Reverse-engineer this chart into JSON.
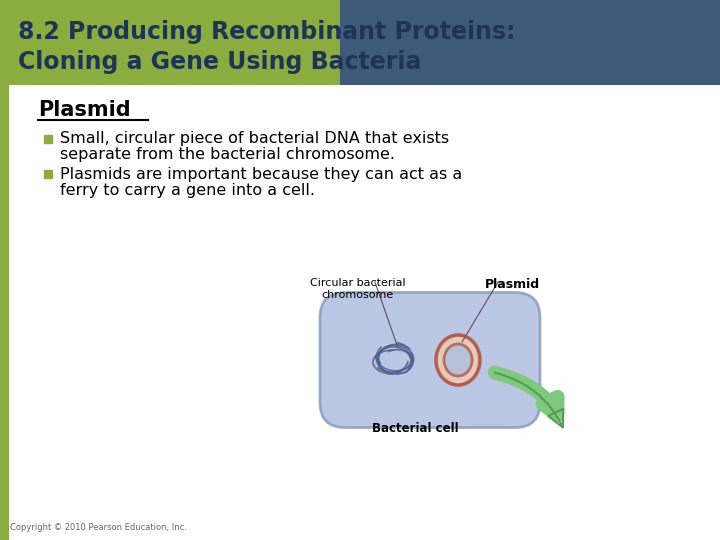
{
  "title_line1": "8.2 Producing Recombinant Proteins:",
  "title_line2": "Cloning a Gene Using Bacteria",
  "title_color": "#1C3557",
  "section_heading": "Plasmid",
  "bullet1_line1": "Small, circular piece of bacterial DNA that exists",
  "bullet1_line2": "separate from the bacterial chromosome.",
  "bullet2_line1": "Plasmids are important because they can act as a",
  "bullet2_line2": "ferry to carry a gene into a cell.",
  "bullet_color": "#8BAD3F",
  "label_chromosome": "Circular bacterial\nchromosome",
  "label_plasmid": "Plasmid",
  "label_cell": "Bacterial cell",
  "copyright": "Copyright © 2010 Pearson Education, Inc.",
  "bg_color": "#FFFFFF",
  "header_bg": "#3D5A7A",
  "left_bar_color": "#8BAD3F",
  "cell_fill": "#B0BEE0",
  "cell_edge": "#8A9DC0",
  "plasmid_fill": "#E8C8B8",
  "plasmid_edge": "#B06050",
  "chromosome_color": "#4A5A8A",
  "arrow_fill": "#80C880",
  "arrow_edge": "#50A050"
}
